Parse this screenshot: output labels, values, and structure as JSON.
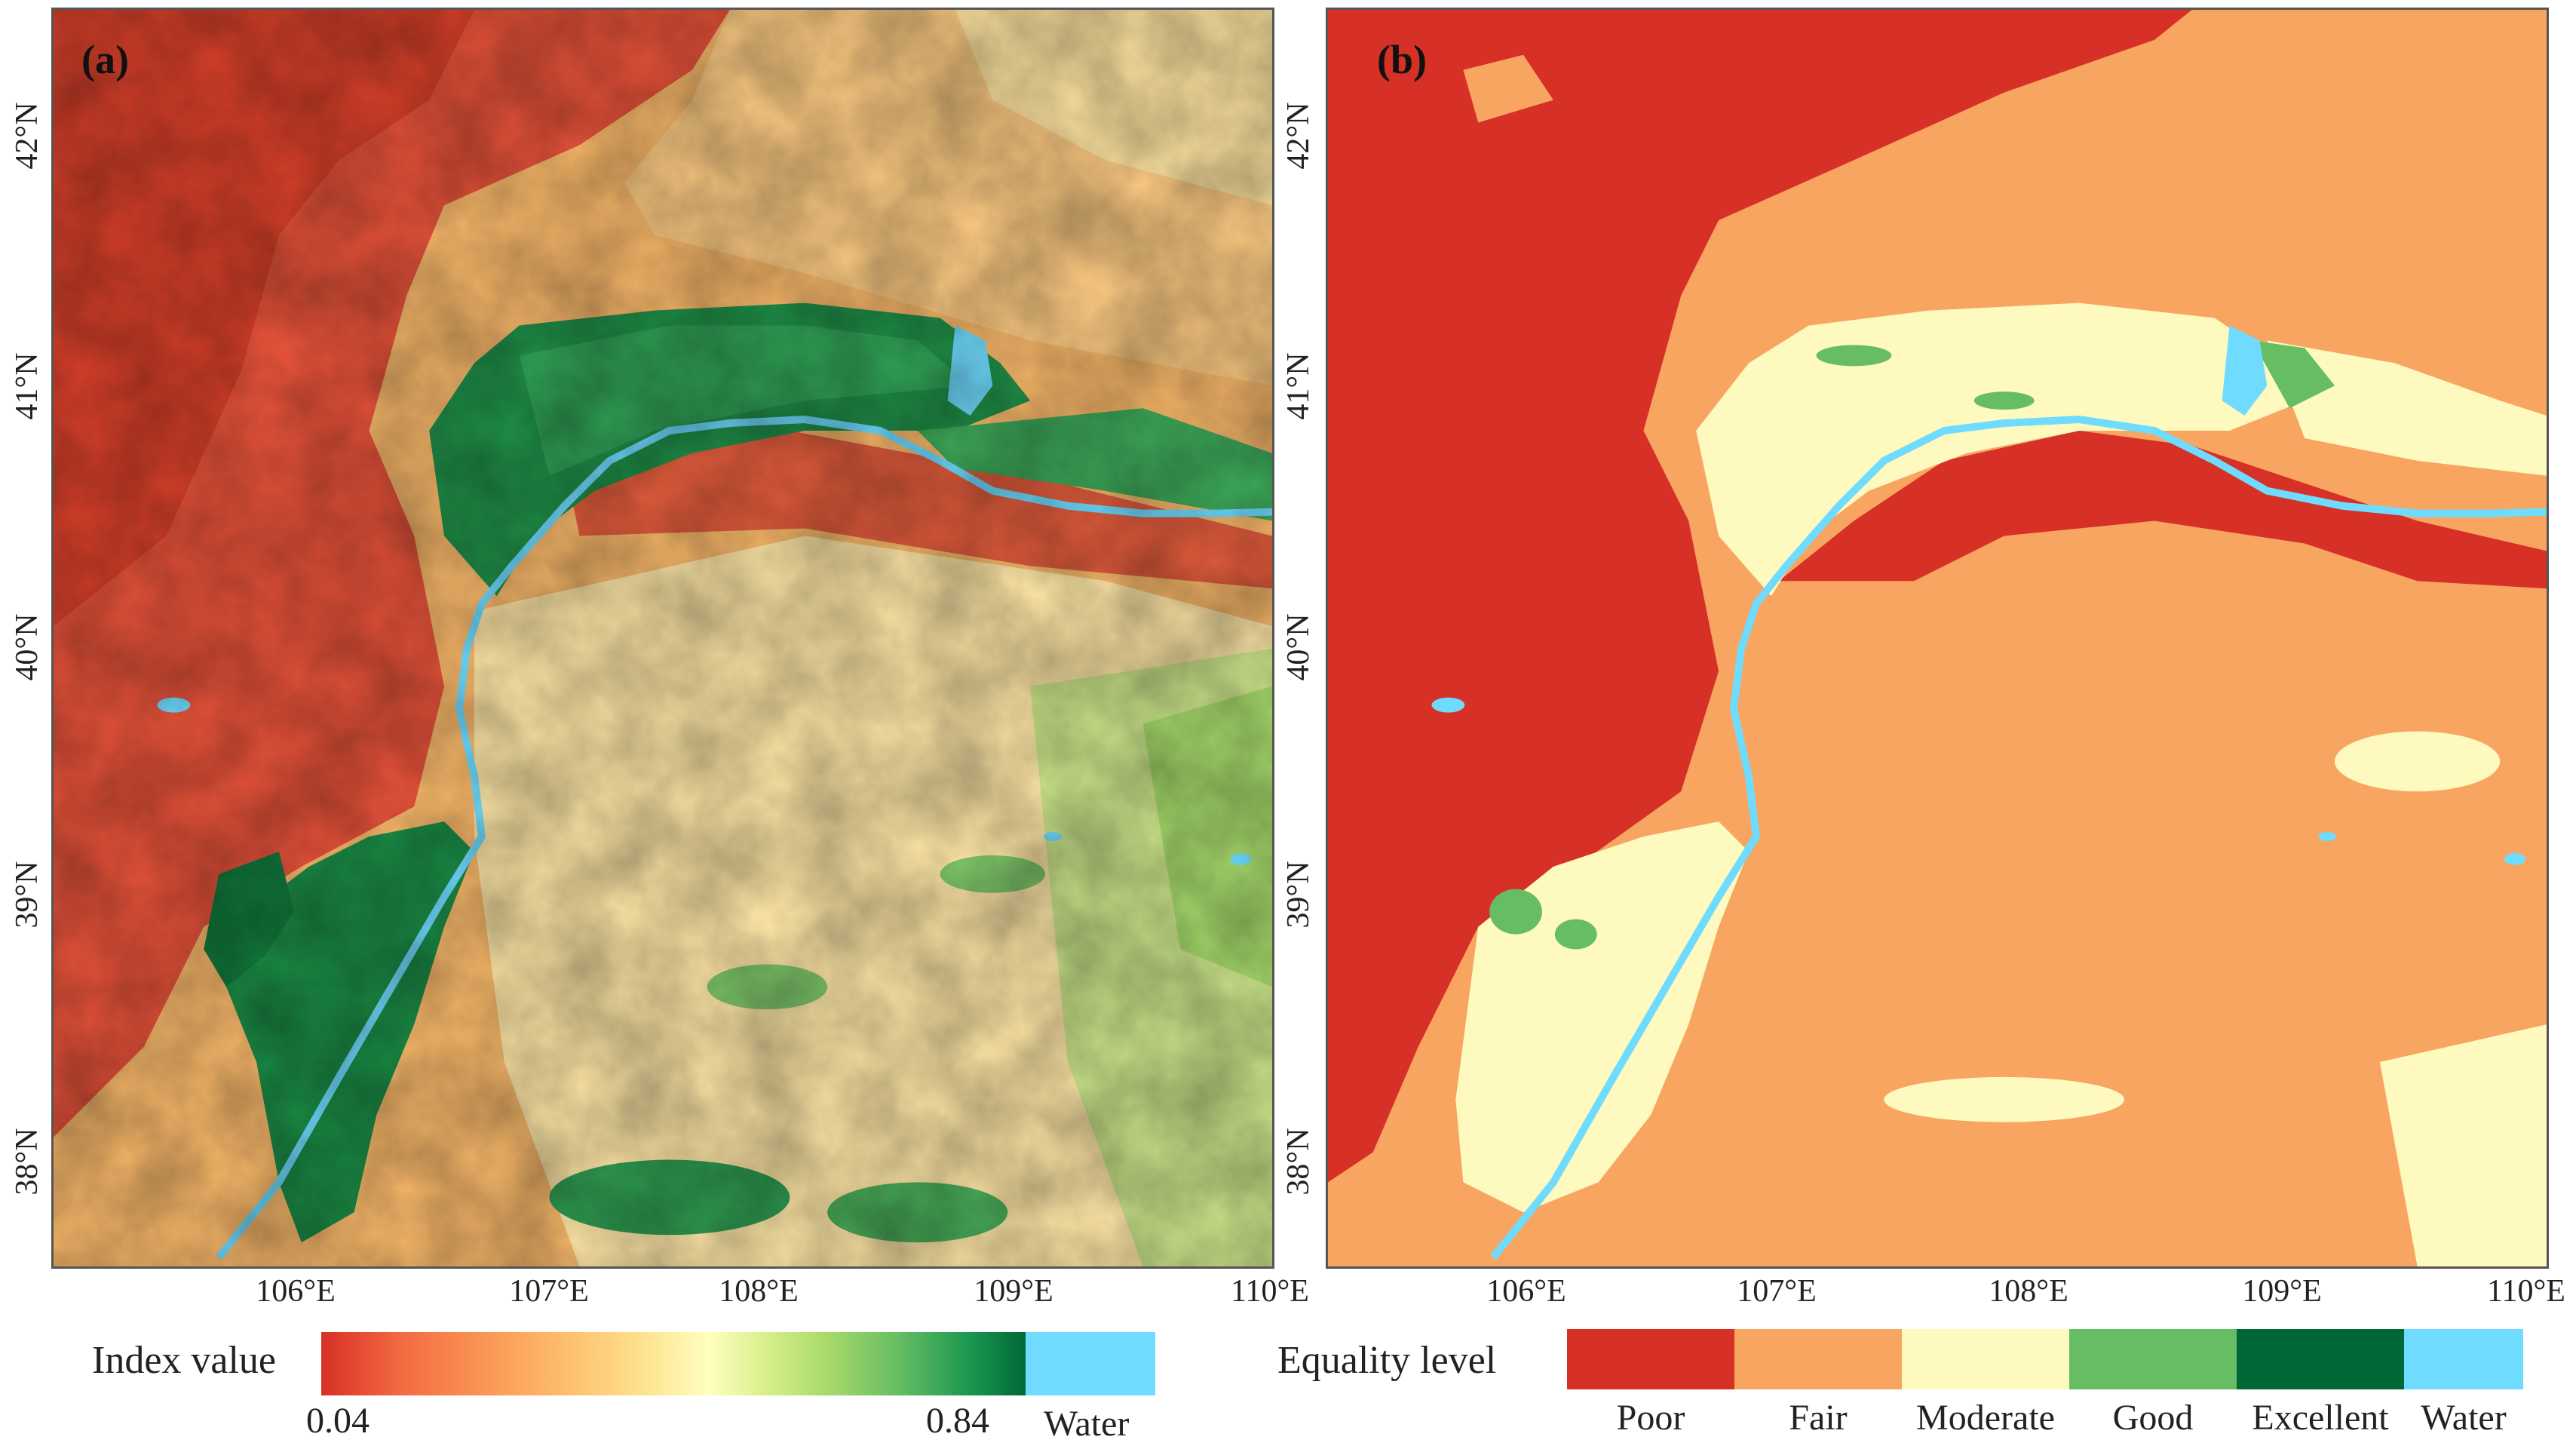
{
  "panels": [
    {
      "label": "(a)",
      "lon_ticks": [
        "106°E",
        "107°E",
        "108°E",
        "109°E",
        "110°E"
      ],
      "lat_ticks": [
        "42°N",
        "41°N",
        "40°N",
        "39°N",
        "38°N"
      ]
    },
    {
      "label": "(b)",
      "lon_ticks": [
        "106°E",
        "107°E",
        "108°E",
        "109°E",
        "110°E"
      ],
      "lat_ticks": [
        "42°N",
        "41°N",
        "40°N",
        "39°N",
        "38°N"
      ]
    }
  ],
  "legend_a": {
    "title": "Index value",
    "min_label": "0.04",
    "max_label": "0.84",
    "water_label": "Water",
    "water_color": "#6fdcff"
  },
  "legend_b": {
    "title": "Equality level",
    "classes": [
      {
        "label": "Poor",
        "color": "#d73027"
      },
      {
        "label": "Fair",
        "color": "#f7a560"
      },
      {
        "label": "Moderate",
        "color": "#fdf9bf"
      },
      {
        "label": "Good",
        "color": "#66bd63"
      },
      {
        "label": "Excellent",
        "color": "#006837"
      },
      {
        "label": "Water",
        "color": "#6fdcff"
      }
    ]
  }
}
